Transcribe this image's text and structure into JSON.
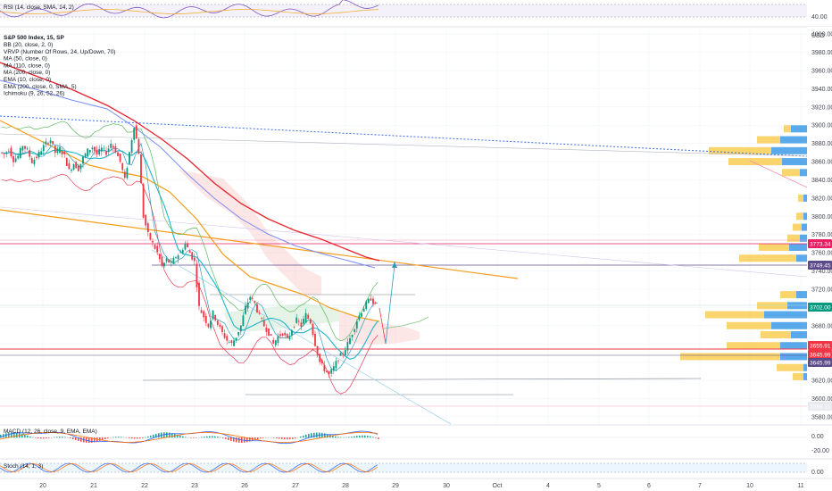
{
  "chart_data": {
    "type": "line",
    "symbol": "S&P 500 Index, 15, SP",
    "currency": "USD",
    "indicators": [
      "BB (20, close, 2, 0)",
      "VRVP (Number Of Rows, 24, Up/Down, 70)",
      "MA (50, close, 0)",
      "MA (110, close, 0)",
      "MA (200, close, 0)",
      "EMA (10, close, 0)",
      "EMA (200, close, 0, SMA, 5)",
      "Ichimoku (9, 26, 52, 26)"
    ],
    "x_ticks": [
      "20",
      "21",
      "22",
      "23",
      "26",
      "27",
      "28",
      "29",
      "30",
      "Oct",
      "4",
      "5",
      "6",
      "7",
      "10",
      "11"
    ],
    "y_ticks": [
      4000,
      3980,
      3960,
      3940,
      3920,
      3900,
      3880,
      3860,
      3840,
      3820,
      3800,
      3780,
      3760,
      3740,
      3720,
      3700,
      3680,
      3660,
      3640,
      3620,
      3600,
      3580
    ],
    "ylim": [
      3572,
      4008
    ],
    "price_labels": [
      {
        "value": "3773.34",
        "color": "#e91e63"
      },
      {
        "value": "3749.45",
        "color": "#5b4b8a"
      },
      {
        "value": "3702.00",
        "color": "#089981"
      },
      {
        "value": "3655.91",
        "color": "#f23645"
      },
      {
        "value": "3645.99",
        "color": "#f23645"
      },
      {
        "value": "3645.99",
        "color": "#5b4b8a"
      },
      {
        "value": "3588.11",
        "color": "#b2b5be"
      }
    ],
    "close_path": [
      [
        0,
        3870
      ],
      [
        2,
        3868
      ],
      [
        4,
        3874
      ],
      [
        6,
        3862
      ],
      [
        8,
        3866
      ],
      [
        10,
        3878
      ],
      [
        12,
        3872
      ],
      [
        14,
        3860
      ],
      [
        16,
        3865
      ],
      [
        18,
        3873
      ],
      [
        20,
        3880
      ],
      [
        22,
        3884
      ],
      [
        24,
        3870
      ],
      [
        26,
        3874
      ],
      [
        28,
        3866
      ],
      [
        30,
        3850
      ],
      [
        32,
        3858
      ],
      [
        34,
        3852
      ],
      [
        36,
        3864
      ],
      [
        38,
        3872
      ],
      [
        40,
        3876
      ],
      [
        42,
        3868
      ],
      [
        44,
        3874
      ],
      [
        46,
        3870
      ],
      [
        48,
        3880
      ],
      [
        50,
        3872
      ],
      [
        52,
        3860
      ],
      [
        54,
        3840
      ],
      [
        56,
        3870
      ],
      [
        58,
        3900
      ],
      [
        60,
        3870
      ],
      [
        62,
        3800
      ],
      [
        64,
        3780
      ],
      [
        66,
        3770
      ],
      [
        68,
        3760
      ],
      [
        70,
        3745
      ],
      [
        72,
        3752
      ],
      [
        74,
        3748
      ],
      [
        76,
        3756
      ],
      [
        78,
        3760
      ],
      [
        80,
        3770
      ],
      [
        82,
        3760
      ],
      [
        84,
        3750
      ],
      [
        86,
        3700
      ],
      [
        88,
        3690
      ],
      [
        90,
        3680
      ],
      [
        92,
        3694
      ],
      [
        94,
        3682
      ],
      [
        96,
        3672
      ],
      [
        98,
        3664
      ],
      [
        100,
        3660
      ],
      [
        102,
        3668
      ],
      [
        104,
        3680
      ],
      [
        106,
        3700
      ],
      [
        108,
        3712
      ],
      [
        110,
        3704
      ],
      [
        112,
        3690
      ],
      [
        114,
        3680
      ],
      [
        116,
        3672
      ],
      [
        118,
        3660
      ],
      [
        120,
        3668
      ],
      [
        122,
        3672
      ],
      [
        124,
        3664
      ],
      [
        126,
        3676
      ],
      [
        128,
        3686
      ],
      [
        130,
        3680
      ],
      [
        132,
        3692
      ],
      [
        134,
        3684
      ],
      [
        136,
        3660
      ],
      [
        138,
        3640
      ],
      [
        140,
        3632
      ],
      [
        142,
        3626
      ],
      [
        144,
        3634
      ],
      [
        146,
        3644
      ],
      [
        148,
        3650
      ],
      [
        150,
        3660
      ],
      [
        152,
        3672
      ],
      [
        154,
        3686
      ],
      [
        156,
        3696
      ],
      [
        158,
        3704
      ],
      [
        160,
        3710
      ],
      [
        162,
        3702
      ]
    ]
  },
  "rsi": {
    "label": "RSI (14, close, SMA, 14, 2)",
    "value": "40.00"
  },
  "macd": {
    "label": "MACD (12, 26, close, 9, EMA, EMA)",
    "y_ticks": [
      "0.00",
      "-20.00"
    ]
  },
  "stoch": {
    "label": "Stoch (14, 1, 3)",
    "value": "0.00"
  },
  "colors": {
    "background": "#ffffff",
    "up": "#089981",
    "down": "#f23645",
    "ma200_red": "#e8232f",
    "ema_orange": "#f59c1a",
    "ma_blue": "#7b8ef0",
    "ema_teal": "#1fb6c9",
    "bb_green": "#5cb85c",
    "bb_red": "#e53950",
    "dotted_blue": "#3b6ee0",
    "vrvp_up": "#3d9ae8",
    "vrvp_down": "#f9c949"
  }
}
